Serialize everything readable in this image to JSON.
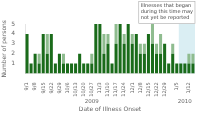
{
  "chart_data": {
    "type": "bar",
    "stacked": true,
    "ylabel": "Number of persons",
    "xlabel": "Date of Illness Onset",
    "categories": [
      "9/1",
      null,
      "9/8",
      null,
      "9/15",
      null,
      "9/22",
      null,
      "9/29",
      null,
      "10/6",
      null,
      "10/13",
      null,
      "10/20",
      null,
      "10/27",
      null,
      "11/3",
      null,
      "11/10",
      null,
      "11/17",
      null,
      "11/24",
      null,
      "12/1",
      null,
      "12/8",
      null,
      "12/15",
      null,
      "12/22",
      null,
      "12/29",
      null,
      null,
      "1/5",
      null,
      null,
      "1/12",
      null
    ],
    "series": [
      {
        "color": "#1a6b1a",
        "values": [
          4,
          1,
          2,
          1,
          4,
          2,
          4,
          1,
          2,
          1,
          1,
          1,
          1,
          2,
          1,
          1,
          1,
          5,
          5,
          2,
          3,
          1,
          3,
          5,
          3,
          5,
          3,
          4,
          2,
          2,
          4,
          3,
          2,
          2,
          3,
          1,
          2,
          1,
          1,
          1,
          1,
          1
        ]
      },
      {
        "color": "#8fbc8f",
        "values": [
          0,
          0,
          0,
          1,
          0,
          2,
          0,
          0,
          0,
          1,
          0,
          0,
          0,
          0,
          0,
          0,
          1,
          0,
          0,
          2,
          1,
          0,
          2,
          0,
          1,
          0,
          1,
          0,
          1,
          1,
          0,
          2,
          1,
          2,
          0,
          0,
          1,
          0,
          0,
          0,
          1,
          1
        ]
      }
    ],
    "ylim": [
      0,
      5
    ],
    "yticks": [
      1,
      2,
      3,
      4,
      5
    ],
    "grid": false,
    "annotation": "Illnesses that began\nduring this time may\nnot yet be reported",
    "year_labels": [
      {
        "text": "2009",
        "x": 16
      },
      {
        "text": "2010",
        "x": 39
      }
    ],
    "shade": {
      "start": 37.5,
      "end": 42.0,
      "color": "#daeef3"
    }
  }
}
